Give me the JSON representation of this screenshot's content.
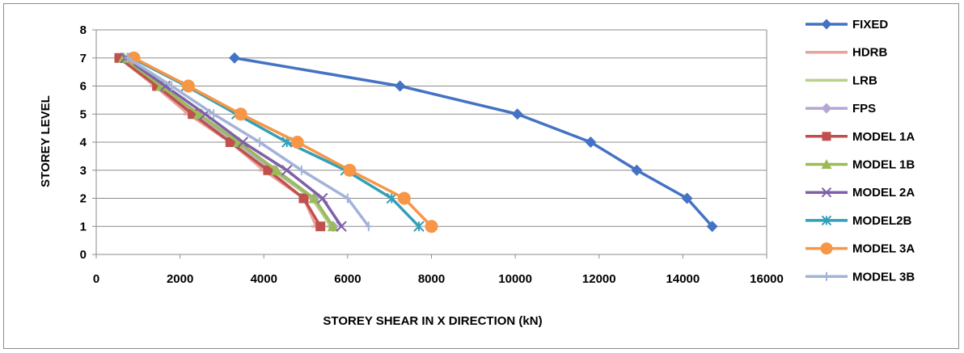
{
  "chart_data": {
    "type": "line",
    "title": "",
    "xlabel": "STOREY SHEAR IN X DIRECTION (kN)",
    "ylabel": "STOREY LEVEL",
    "xlim": [
      0,
      16000
    ],
    "ylim": [
      0,
      8
    ],
    "x_ticks": [
      0,
      2000,
      4000,
      6000,
      8000,
      10000,
      12000,
      14000,
      16000
    ],
    "y_ticks": [
      0,
      1,
      2,
      3,
      4,
      5,
      6,
      7,
      8
    ],
    "grid": "horizontal",
    "legend_position": "right",
    "y": [
      1,
      2,
      3,
      4,
      5,
      6,
      7
    ],
    "series": [
      {
        "name": "FIXED",
        "color": "#4472c4",
        "marker": "diamond",
        "values": [
          14700,
          14100,
          12900,
          11800,
          10050,
          7250,
          3300
        ]
      },
      {
        "name": "HDRB",
        "color": "#e8a29e",
        "marker": "dash",
        "values": [
          5250,
          4950,
          4000,
          3200,
          2200,
          1400,
          550
        ]
      },
      {
        "name": "LRB",
        "color": "#b8d08a",
        "marker": "dash",
        "values": [
          5600,
          5150,
          4200,
          3300,
          2350,
          1500,
          600
        ]
      },
      {
        "name": "FPS",
        "color": "#b4a7d6",
        "marker": "diamond",
        "values": [
          5650,
          5200,
          4250,
          3350,
          2400,
          1550,
          650
        ]
      },
      {
        "name": "MODEL 1A",
        "color": "#c0504d",
        "marker": "square",
        "values": [
          5350,
          4950,
          4100,
          3200,
          2300,
          1450,
          550
        ]
      },
      {
        "name": "MODEL 1B",
        "color": "#9bbb59",
        "marker": "triangle",
        "values": [
          5650,
          5200,
          4300,
          3400,
          2450,
          1550,
          650
        ]
      },
      {
        "name": "MODEL 2A",
        "color": "#7f60a8",
        "marker": "x",
        "values": [
          5850,
          5400,
          4550,
          3500,
          2600,
          1650,
          700
        ]
      },
      {
        "name": "MODEL2B",
        "color": "#31a0b8",
        "marker": "star",
        "values": [
          7700,
          7050,
          5950,
          4550,
          3350,
          2150,
          850
        ]
      },
      {
        "name": "MODEL 3A",
        "color": "#f79646",
        "marker": "circle",
        "values": [
          8000,
          7350,
          6050,
          4800,
          3450,
          2200,
          900
        ]
      },
      {
        "name": "MODEL 3B",
        "color": "#a3b3d8",
        "marker": "plus",
        "values": [
          6500,
          6000,
          4900,
          3900,
          2800,
          1800,
          750
        ]
      }
    ]
  }
}
